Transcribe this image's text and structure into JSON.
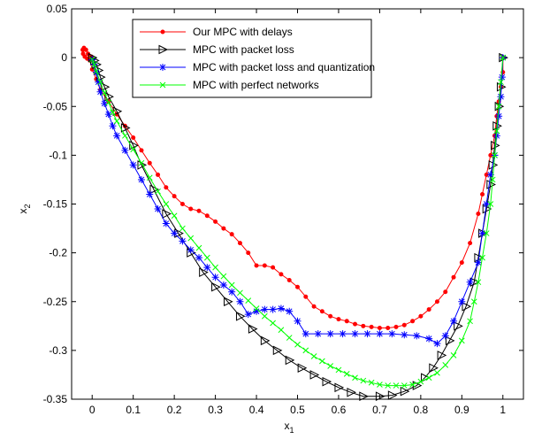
{
  "chart_data": {
    "type": "line",
    "title": "",
    "xlabel": "x",
    "xlabel_sub": "1",
    "ylabel": "x",
    "ylabel_sub": "2",
    "xlim": [
      -0.05,
      1.05
    ],
    "ylim": [
      -0.35,
      0.05
    ],
    "xticks": [
      {
        "value": 0,
        "label": "0"
      },
      {
        "value": 0.1,
        "label": "0.1"
      },
      {
        "value": 0.2,
        "label": "0.2"
      },
      {
        "value": 0.3,
        "label": "0.3"
      },
      {
        "value": 0.4,
        "label": "0.4"
      },
      {
        "value": 0.5,
        "label": "0.5"
      },
      {
        "value": 0.6,
        "label": "0.6"
      },
      {
        "value": 0.7,
        "label": "0.7"
      },
      {
        "value": 0.8,
        "label": "0.8"
      },
      {
        "value": 0.9,
        "label": "0.9"
      },
      {
        "value": 1,
        "label": "1"
      }
    ],
    "yticks": [
      {
        "value": 0.05,
        "label": "0.05"
      },
      {
        "value": 0,
        "label": "0"
      },
      {
        "value": -0.05,
        "label": "-0.05"
      },
      {
        "value": -0.1,
        "label": "-0.1"
      },
      {
        "value": -0.15,
        "label": "-0.15"
      },
      {
        "value": -0.2,
        "label": "-0.2"
      },
      {
        "value": -0.25,
        "label": "-0.25"
      },
      {
        "value": -0.3,
        "label": "-0.3"
      },
      {
        "value": -0.35,
        "label": "-0.35"
      }
    ],
    "grid": false,
    "legend_position": "top-center",
    "series": [
      {
        "name": "Our MPC with delays",
        "color": "#ff0000",
        "marker": "dot",
        "x": [
          1,
          1,
          0.995,
          0.99,
          0.985,
          0.98,
          0.97,
          0.96,
          0.95,
          0.94,
          0.92,
          0.9,
          0.88,
          0.86,
          0.84,
          0.82,
          0.8,
          0.78,
          0.76,
          0.74,
          0.72,
          0.7,
          0.68,
          0.66,
          0.64,
          0.62,
          0.6,
          0.58,
          0.56,
          0.54,
          0.52,
          0.5,
          0.48,
          0.46,
          0.44,
          0.42,
          0.4,
          0.38,
          0.36,
          0.34,
          0.32,
          0.3,
          0.28,
          0.26,
          0.24,
          0.22,
          0.2,
          0.18,
          0.16,
          0.14,
          0.12,
          0.1,
          0.08,
          0.06,
          0.04,
          0.02,
          0.01,
          0,
          -0.005,
          -0.01,
          -0.015,
          -0.02,
          -0.023,
          -0.022,
          -0.018,
          -0.012,
          -0.006,
          -0.002
        ],
        "y": [
          0,
          -0.015,
          -0.03,
          -0.045,
          -0.06,
          -0.08,
          -0.1,
          -0.12,
          -0.14,
          -0.16,
          -0.19,
          -0.21,
          -0.225,
          -0.24,
          -0.25,
          -0.258,
          -0.265,
          -0.27,
          -0.274,
          -0.276,
          -0.277,
          -0.277,
          -0.276,
          -0.275,
          -0.273,
          -0.27,
          -0.268,
          -0.265,
          -0.26,
          -0.255,
          -0.245,
          -0.235,
          -0.228,
          -0.222,
          -0.215,
          -0.213,
          -0.213,
          -0.2,
          -0.19,
          -0.181,
          -0.175,
          -0.168,
          -0.162,
          -0.157,
          -0.155,
          -0.15,
          -0.142,
          -0.133,
          -0.12,
          -0.108,
          -0.095,
          -0.082,
          -0.07,
          -0.058,
          -0.045,
          -0.033,
          -0.022,
          -0.012,
          -0.003,
          0.004,
          0.008,
          0.01,
          0.008,
          0.004,
          0.001,
          -0.001,
          0.0,
          0.001
        ]
      },
      {
        "name": "MPC with packet loss",
        "color": "#000000",
        "marker": "triangle-right",
        "x": [
          1,
          0.995,
          0.99,
          0.985,
          0.98,
          0.975,
          0.97,
          0.96,
          0.95,
          0.94,
          0.93,
          0.91,
          0.89,
          0.87,
          0.85,
          0.83,
          0.81,
          0.79,
          0.76,
          0.73,
          0.7,
          0.66,
          0.63,
          0.6,
          0.57,
          0.54,
          0.51,
          0.48,
          0.45,
          0.42,
          0.39,
          0.36,
          0.33,
          0.3,
          0.27,
          0.24,
          0.21,
          0.18,
          0.15,
          0.12,
          0.1,
          0.08,
          0.06,
          0.04,
          0.03,
          0.02,
          0.015,
          0.01,
          0.005,
          0
        ],
        "y": [
          0,
          -0.03,
          -0.05,
          -0.07,
          -0.09,
          -0.11,
          -0.13,
          -0.155,
          -0.18,
          -0.205,
          -0.23,
          -0.255,
          -0.275,
          -0.29,
          -0.305,
          -0.318,
          -0.328,
          -0.336,
          -0.342,
          -0.346,
          -0.347,
          -0.347,
          -0.343,
          -0.338,
          -0.332,
          -0.325,
          -0.318,
          -0.31,
          -0.3,
          -0.29,
          -0.278,
          -0.265,
          -0.25,
          -0.235,
          -0.22,
          -0.2,
          -0.18,
          -0.16,
          -0.135,
          -0.11,
          -0.09,
          -0.072,
          -0.055,
          -0.04,
          -0.03,
          -0.02,
          -0.013,
          -0.007,
          -0.003,
          0
        ]
      },
      {
        "name": "MPC with packet loss and quantization",
        "color": "#0000ff",
        "marker": "star",
        "x": [
          1,
          0.998,
          0.995,
          0.99,
          0.985,
          0.98,
          0.97,
          0.96,
          0.95,
          0.94,
          0.92,
          0.9,
          0.88,
          0.86,
          0.84,
          0.82,
          0.79,
          0.76,
          0.73,
          0.7,
          0.67,
          0.64,
          0.61,
          0.58,
          0.55,
          0.52,
          0.5,
          0.48,
          0.46,
          0.44,
          0.42,
          0.4,
          0.38,
          0.36,
          0.34,
          0.32,
          0.3,
          0.28,
          0.26,
          0.24,
          0.22,
          0.2,
          0.18,
          0.16,
          0.14,
          0.12,
          0.1,
          0.08,
          0.06,
          0.05,
          0.04,
          0.03,
          0.02,
          0.015,
          0.01,
          0.005,
          0
        ],
        "y": [
          0,
          -0.02,
          -0.04,
          -0.06,
          -0.08,
          -0.1,
          -0.12,
          -0.15,
          -0.18,
          -0.21,
          -0.23,
          -0.25,
          -0.27,
          -0.285,
          -0.293,
          -0.288,
          -0.285,
          -0.284,
          -0.283,
          -0.283,
          -0.283,
          -0.283,
          -0.283,
          -0.283,
          -0.283,
          -0.283,
          -0.27,
          -0.26,
          -0.257,
          -0.258,
          -0.258,
          -0.26,
          -0.263,
          -0.25,
          -0.24,
          -0.233,
          -0.225,
          -0.215,
          -0.205,
          -0.197,
          -0.188,
          -0.18,
          -0.17,
          -0.155,
          -0.14,
          -0.125,
          -0.11,
          -0.095,
          -0.08,
          -0.07,
          -0.058,
          -0.047,
          -0.035,
          -0.025,
          -0.015,
          -0.007,
          -0.002
        ]
      },
      {
        "name": "MPC with perfect networks",
        "color": "#00ff00",
        "marker": "x",
        "x": [
          1,
          0.995,
          0.99,
          0.985,
          0.98,
          0.975,
          0.97,
          0.96,
          0.95,
          0.94,
          0.93,
          0.92,
          0.9,
          0.88,
          0.86,
          0.84,
          0.82,
          0.8,
          0.78,
          0.76,
          0.74,
          0.72,
          0.7,
          0.68,
          0.66,
          0.64,
          0.62,
          0.6,
          0.58,
          0.56,
          0.54,
          0.52,
          0.5,
          0.48,
          0.46,
          0.44,
          0.42,
          0.4,
          0.38,
          0.36,
          0.34,
          0.32,
          0.3,
          0.28,
          0.26,
          0.24,
          0.22,
          0.2,
          0.18,
          0.16,
          0.14,
          0.12,
          0.1,
          0.08,
          0.06,
          0.05,
          0.04,
          0.03,
          0.02,
          0.01,
          0.005,
          0
        ],
        "y": [
          0,
          -0.025,
          -0.05,
          -0.075,
          -0.1,
          -0.125,
          -0.15,
          -0.18,
          -0.205,
          -0.23,
          -0.25,
          -0.27,
          -0.29,
          -0.305,
          -0.315,
          -0.323,
          -0.328,
          -0.332,
          -0.335,
          -0.336,
          -0.336,
          -0.336,
          -0.335,
          -0.333,
          -0.331,
          -0.328,
          -0.324,
          -0.32,
          -0.316,
          -0.311,
          -0.306,
          -0.3,
          -0.294,
          -0.287,
          -0.279,
          -0.272,
          -0.265,
          -0.257,
          -0.249,
          -0.241,
          -0.233,
          -0.224,
          -0.215,
          -0.205,
          -0.195,
          -0.185,
          -0.175,
          -0.162,
          -0.15,
          -0.137,
          -0.123,
          -0.108,
          -0.094,
          -0.08,
          -0.065,
          -0.056,
          -0.046,
          -0.036,
          -0.025,
          -0.014,
          -0.007,
          -0.002
        ]
      }
    ]
  }
}
